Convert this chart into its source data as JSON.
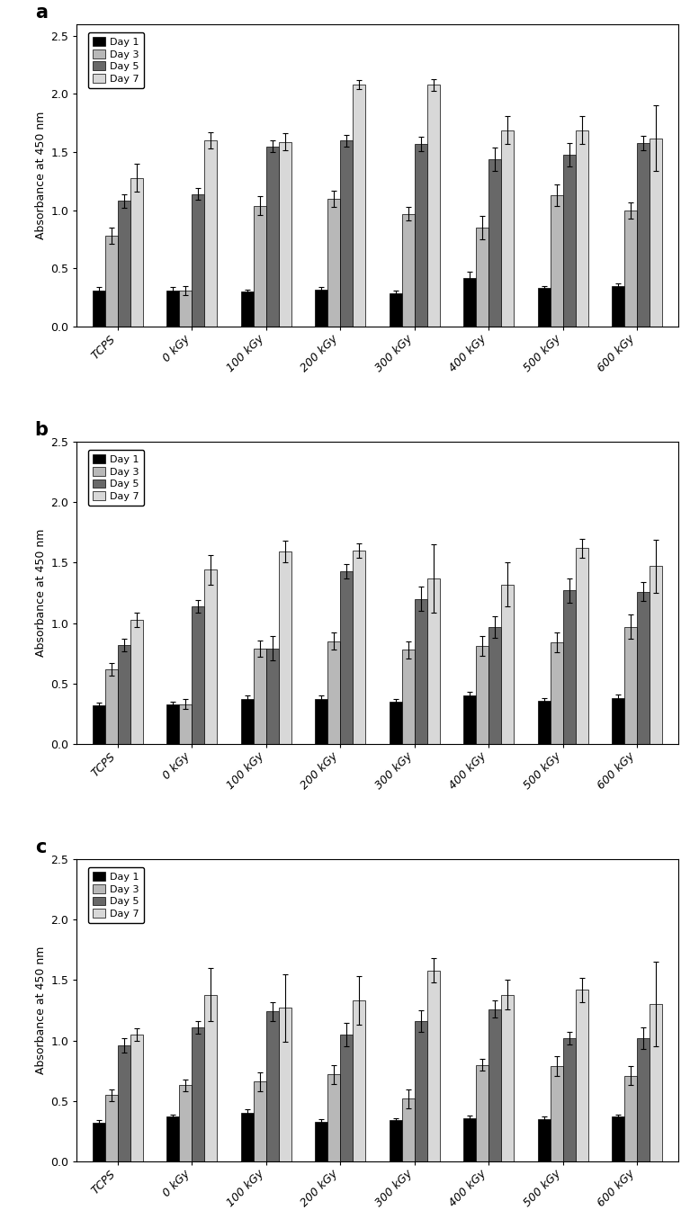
{
  "categories": [
    "TCPS",
    "0 kGy",
    "100 kGy",
    "200 kGy",
    "300 kGy",
    "400 kGy",
    "500 kGy",
    "600 kGy"
  ],
  "ylabel": "Absorbance at 450 nm",
  "day_labels": [
    "Day 1",
    "Day 3",
    "Day 5",
    "Day 7"
  ],
  "bar_colors": [
    "#000000",
    "#b8b8b8",
    "#686868",
    "#d8d8d8"
  ],
  "panels": [
    {
      "label": "a",
      "ylim": [
        0,
        2.6
      ],
      "yticks": [
        0.0,
        0.5,
        1.0,
        1.5,
        2.0,
        2.5
      ],
      "data": {
        "day1": [
          0.31,
          0.31,
          0.3,
          0.32,
          0.29,
          0.42,
          0.33,
          0.35
        ],
        "day3": [
          0.78,
          0.31,
          1.04,
          1.1,
          0.97,
          0.85,
          1.13,
          1.0
        ],
        "day5": [
          1.08,
          1.14,
          1.55,
          1.6,
          1.57,
          1.44,
          1.48,
          1.58
        ],
        "day7": [
          1.28,
          1.6,
          1.59,
          2.08,
          2.08,
          1.69,
          1.69,
          1.62
        ],
        "day1_err": [
          0.03,
          0.03,
          0.02,
          0.02,
          0.02,
          0.05,
          0.02,
          0.02
        ],
        "day3_err": [
          0.07,
          0.04,
          0.08,
          0.07,
          0.06,
          0.1,
          0.09,
          0.07
        ],
        "day5_err": [
          0.06,
          0.05,
          0.05,
          0.05,
          0.06,
          0.1,
          0.1,
          0.06
        ],
        "day7_err": [
          0.12,
          0.07,
          0.07,
          0.04,
          0.05,
          0.12,
          0.12,
          0.28
        ]
      }
    },
    {
      "label": "b",
      "ylim": [
        0,
        2.5
      ],
      "yticks": [
        0.0,
        0.5,
        1.0,
        1.5,
        2.0,
        2.5
      ],
      "data": {
        "day1": [
          0.32,
          0.33,
          0.37,
          0.37,
          0.35,
          0.4,
          0.36,
          0.38
        ],
        "day3": [
          0.62,
          0.33,
          0.79,
          0.85,
          0.78,
          0.81,
          0.84,
          0.97
        ],
        "day5": [
          0.82,
          1.14,
          0.79,
          1.43,
          1.2,
          0.97,
          1.27,
          1.26
        ],
        "day7": [
          1.03,
          1.44,
          1.59,
          1.6,
          1.37,
          1.32,
          1.62,
          1.47
        ],
        "day1_err": [
          0.02,
          0.02,
          0.03,
          0.03,
          0.02,
          0.03,
          0.02,
          0.03
        ],
        "day3_err": [
          0.05,
          0.04,
          0.07,
          0.07,
          0.07,
          0.08,
          0.08,
          0.1
        ],
        "day5_err": [
          0.05,
          0.05,
          0.1,
          0.06,
          0.1,
          0.09,
          0.1,
          0.08
        ],
        "day7_err": [
          0.06,
          0.12,
          0.09,
          0.06,
          0.28,
          0.18,
          0.08,
          0.22
        ]
      }
    },
    {
      "label": "c",
      "ylim": [
        0,
        2.5
      ],
      "yticks": [
        0.0,
        0.5,
        1.0,
        1.5,
        2.0,
        2.5
      ],
      "data": {
        "day1": [
          0.32,
          0.37,
          0.4,
          0.33,
          0.34,
          0.36,
          0.35,
          0.37
        ],
        "day3": [
          0.55,
          0.63,
          0.66,
          0.72,
          0.52,
          0.8,
          0.79,
          0.71
        ],
        "day5": [
          0.96,
          1.11,
          1.24,
          1.05,
          1.16,
          1.26,
          1.02,
          1.02
        ],
        "day7": [
          1.05,
          1.38,
          1.27,
          1.33,
          1.58,
          1.38,
          1.42,
          1.3
        ],
        "day1_err": [
          0.02,
          0.02,
          0.03,
          0.02,
          0.02,
          0.02,
          0.02,
          0.02
        ],
        "day3_err": [
          0.05,
          0.05,
          0.08,
          0.08,
          0.08,
          0.05,
          0.08,
          0.08
        ],
        "day5_err": [
          0.06,
          0.05,
          0.08,
          0.1,
          0.09,
          0.07,
          0.05,
          0.09
        ],
        "day7_err": [
          0.05,
          0.22,
          0.28,
          0.2,
          0.1,
          0.12,
          0.1,
          0.35
        ]
      }
    }
  ]
}
